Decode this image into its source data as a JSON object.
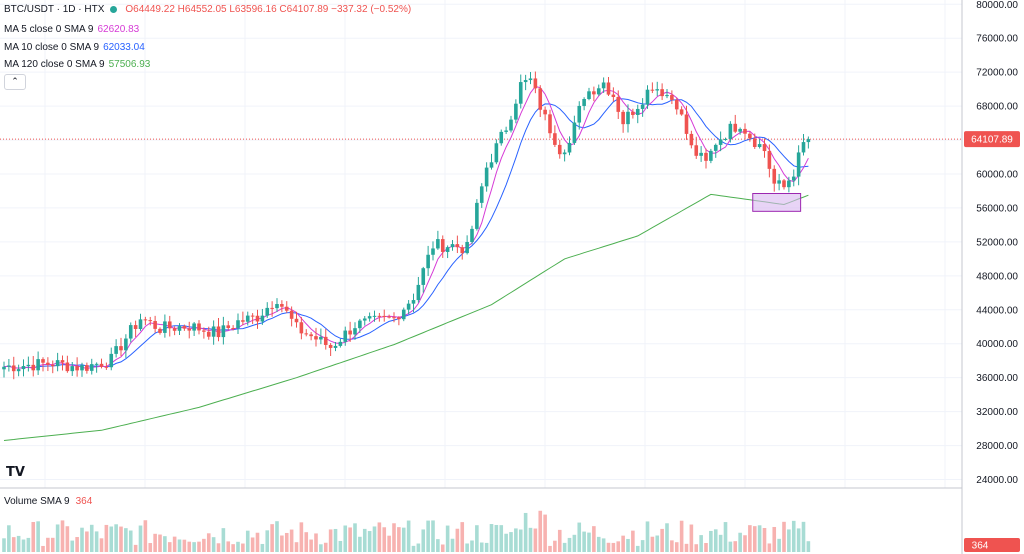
{
  "header": {
    "symbol": "BTC/USDT · 1D · HTX",
    "ohlc": "O64449.22 H64552.05 L63596.16 C64107.89 −337.32 (−0.52%)",
    "status_color": "#26a69a"
  },
  "indicators": [
    {
      "label": "MA 5 close 0 SMA 9",
      "value": "62620.83",
      "color": "#d63ad6"
    },
    {
      "label": "MA 10 close 0 SMA 9",
      "value": "62033.04",
      "color": "#2962ff"
    },
    {
      "label": "MA 120 close 0 SMA 9",
      "value": "57506.93",
      "color": "#4caf50"
    }
  ],
  "volume": {
    "label": "Volume SMA 9",
    "value": "364",
    "axis_label": "364"
  },
  "price_label": "64107.89",
  "logo": "TV",
  "collapse_icon": "chevron-up-icon",
  "colors": {
    "up": "#26a69a",
    "down": "#ef5350",
    "up_vol": "#a8dcd4",
    "down_vol": "#f7b2b0",
    "highlight": "#d9b8f0"
  },
  "chart_data": {
    "type": "candlestick",
    "title": "BTC/USDT · 1D · HTX",
    "y_ticks": [
      24000,
      28000,
      32000,
      36000,
      40000,
      44000,
      48000,
      52000,
      56000,
      60000,
      64000,
      68000,
      72000,
      76000,
      80000
    ],
    "ylim": [
      23000,
      80500
    ],
    "last_close": 64107.89,
    "anchors": [
      [
        0,
        37300
      ],
      [
        10,
        37700
      ],
      [
        16,
        37200
      ],
      [
        22,
        38100
      ],
      [
        25,
        40700
      ],
      [
        28,
        43000
      ],
      [
        32,
        41800
      ],
      [
        38,
        42100
      ],
      [
        44,
        41200
      ],
      [
        48,
        42600
      ],
      [
        52,
        43200
      ],
      [
        56,
        45400
      ],
      [
        60,
        41800
      ],
      [
        64,
        40600
      ],
      [
        67,
        39600
      ],
      [
        72,
        42200
      ],
      [
        80,
        43000
      ],
      [
        84,
        45600
      ],
      [
        88,
        51600
      ],
      [
        92,
        51600
      ],
      [
        95,
        51200
      ],
      [
        99,
        60800
      ],
      [
        103,
        65500
      ],
      [
        106,
        70500
      ],
      [
        108,
        71000
      ],
      [
        111,
        66500
      ],
      [
        114,
        63000
      ],
      [
        116,
        63600
      ],
      [
        119,
        69400
      ],
      [
        123,
        70800
      ],
      [
        125,
        69300
      ],
      [
        127,
        66200
      ],
      [
        130,
        68200
      ],
      [
        133,
        70500
      ],
      [
        135,
        69800
      ],
      [
        138,
        68400
      ],
      [
        141,
        63000
      ],
      [
        144,
        61200
      ],
      [
        146,
        63800
      ],
      [
        149,
        65300
      ],
      [
        151,
        66000
      ],
      [
        153,
        64500
      ],
      [
        156,
        62800
      ],
      [
        158,
        58800
      ],
      [
        160,
        58400
      ],
      [
        162,
        60300
      ],
      [
        164,
        63500
      ],
      [
        165,
        64107.89
      ]
    ],
    "ma120": [
      [
        0,
        28600
      ],
      [
        20,
        29800
      ],
      [
        40,
        32500
      ],
      [
        60,
        36000
      ],
      [
        80,
        39900
      ],
      [
        100,
        44600
      ],
      [
        115,
        50000
      ],
      [
        130,
        52700
      ],
      [
        145,
        57600
      ],
      [
        160,
        56400
      ],
      [
        165,
        57500
      ]
    ],
    "highlight_box": {
      "x_from": 154,
      "x_to": 163,
      "y_from": 55600,
      "y_to": 57700
    }
  }
}
